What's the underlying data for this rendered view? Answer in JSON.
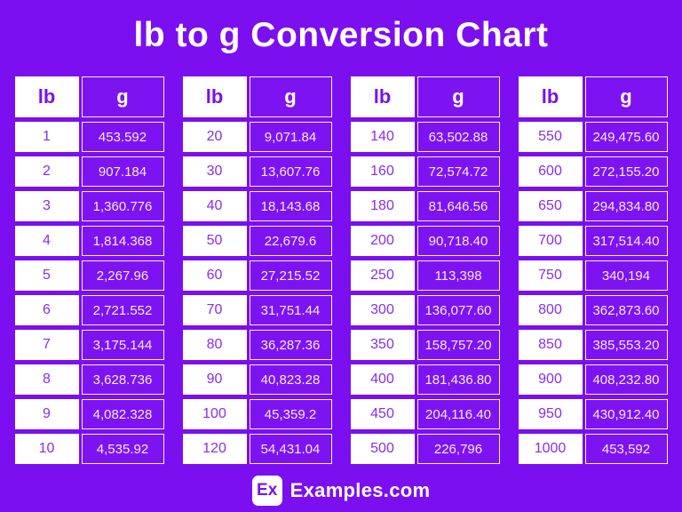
{
  "title": "lb to g Conversion Chart",
  "col_headers": {
    "lb": "lb",
    "g": "g"
  },
  "chart_data": {
    "type": "table",
    "title": "lb to g Conversion Chart",
    "columns": [
      "lb",
      "g"
    ],
    "tables": [
      {
        "rows": [
          [
            "1",
            "453.592"
          ],
          [
            "2",
            "907.184"
          ],
          [
            "3",
            "1,360.776"
          ],
          [
            "4",
            "1,814.368"
          ],
          [
            "5",
            "2,267.96"
          ],
          [
            "6",
            "2,721.552"
          ],
          [
            "7",
            "3,175.144"
          ],
          [
            "8",
            "3,628.736"
          ],
          [
            "9",
            "4,082.328"
          ],
          [
            "10",
            "4,535.92"
          ]
        ]
      },
      {
        "rows": [
          [
            "20",
            "9,071.84"
          ],
          [
            "30",
            "13,607.76"
          ],
          [
            "40",
            "18,143.68"
          ],
          [
            "50",
            "22,679.6"
          ],
          [
            "60",
            "27,215.52"
          ],
          [
            "70",
            "31,751.44"
          ],
          [
            "80",
            "36,287.36"
          ],
          [
            "90",
            "40,823.28"
          ],
          [
            "100",
            "45,359.2"
          ],
          [
            "120",
            "54,431.04"
          ]
        ]
      },
      {
        "rows": [
          [
            "140",
            "63,502.88"
          ],
          [
            "160",
            "72,574.72"
          ],
          [
            "180",
            "81,646.56"
          ],
          [
            "200",
            "90,718.40"
          ],
          [
            "250",
            "113,398"
          ],
          [
            "300",
            "136,077.60"
          ],
          [
            "350",
            "158,757.20"
          ],
          [
            "400",
            "181,436.80"
          ],
          [
            "450",
            "204,116.40"
          ],
          [
            "500",
            "226,796"
          ]
        ]
      },
      {
        "rows": [
          [
            "550",
            "249,475.60"
          ],
          [
            "600",
            "272,155.20"
          ],
          [
            "650",
            "294,834.80"
          ],
          [
            "700",
            "317,514.40"
          ],
          [
            "750",
            "340,194"
          ],
          [
            "800",
            "362,873.60"
          ],
          [
            "850",
            "385,553.20"
          ],
          [
            "900",
            "408,232.80"
          ],
          [
            "950",
            "430,912.40"
          ],
          [
            "1000",
            "453,592"
          ]
        ]
      }
    ]
  },
  "footer": {
    "logo_text": "Ex",
    "brand_text": "Examples.com"
  },
  "colors": {
    "background": "#7B0FF0",
    "g_cell_fill": "#7E13F2",
    "lb_cell_fill": "#FFFFFF",
    "lb_text": "#8A2BF2",
    "g_text": "#F2ECFA",
    "title_text": "#FFFFFF"
  }
}
